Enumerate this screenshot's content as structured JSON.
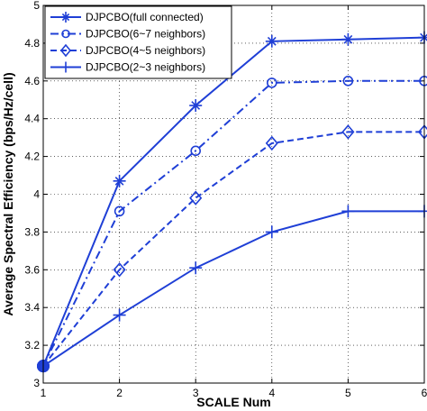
{
  "chart_data": {
    "type": "line",
    "xlabel": "SCALE Num",
    "ylabel": "Average Spectral Efficiency (bps/Hz/cell)",
    "xlim": [
      1,
      6
    ],
    "ylim": [
      3.0,
      5.0
    ],
    "x_ticks": [
      "1",
      "2",
      "3",
      "4",
      "5",
      "6"
    ],
    "y_ticks": [
      "3",
      "3.2",
      "3.4",
      "3.6",
      "3.8",
      "4",
      "4.2",
      "4.4",
      "4.6",
      "4.8",
      "5"
    ],
    "grid": "dotted",
    "legend_position": "top-left",
    "line_color": "#1f3fd6",
    "x": [
      1,
      2,
      3,
      4,
      5,
      6
    ],
    "series": [
      {
        "name": "DJPCBO(full connected)",
        "marker": "asterisk",
        "line_style": "solid",
        "values": [
          3.09,
          4.07,
          4.47,
          4.81,
          4.82,
          4.83
        ]
      },
      {
        "name": "DJPCBO(6~7 neighbors)",
        "marker": "circle",
        "line_style": "dash-dot",
        "values": [
          3.09,
          3.91,
          4.23,
          4.59,
          4.6,
          4.6
        ]
      },
      {
        "name": "DJPCBO(4~5 neighbors)",
        "marker": "diamond",
        "line_style": "dashed",
        "values": [
          3.09,
          3.6,
          3.98,
          4.27,
          4.33,
          4.33
        ]
      },
      {
        "name": "DJPCBO(2~3 neighbors)",
        "marker": "plus",
        "line_style": "solid",
        "values": [
          3.09,
          3.36,
          3.61,
          3.8,
          3.91,
          3.91
        ]
      }
    ]
  }
}
